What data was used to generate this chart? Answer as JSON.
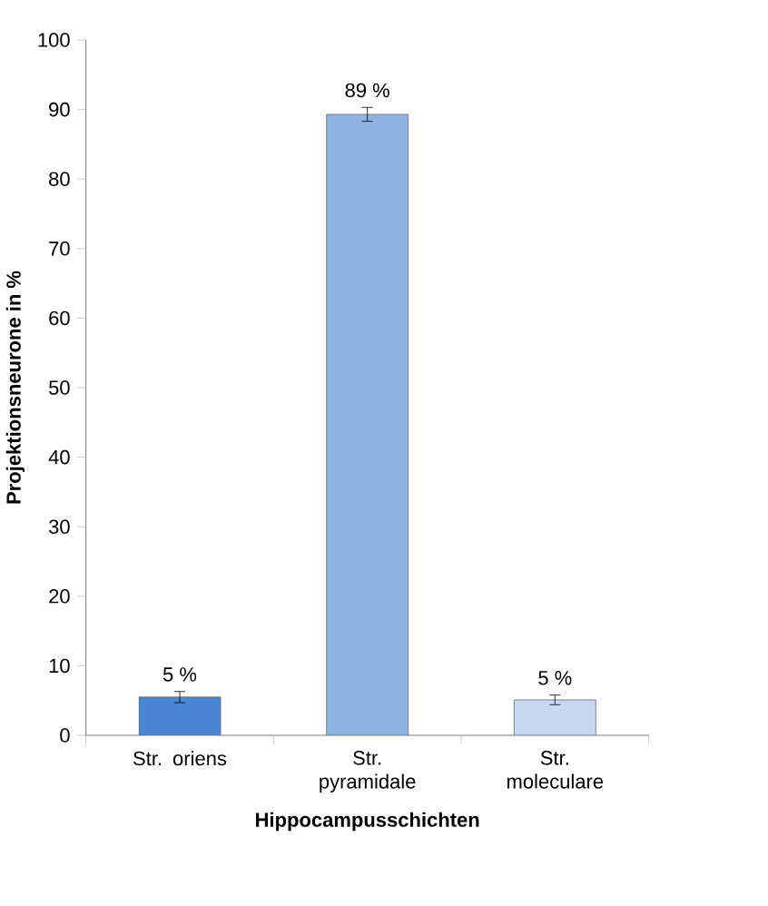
{
  "chart_data": {
    "type": "bar",
    "xlabel": "Hippocampusschichten",
    "ylabel": "Projektionsneurone in %",
    "categories": [
      "Str. oriens",
      "Str. pyramidale",
      "Str. moleculare"
    ],
    "values": [
      5.5,
      89.3,
      5.1
    ],
    "errors": [
      0.8,
      1.0,
      0.7
    ],
    "colors": [
      "#4a86d4",
      "#8db3e2",
      "#c6d9f1"
    ],
    "value_labels": [
      "5 %",
      "89 %",
      "5 %"
    ],
    "ylim": [
      0,
      100
    ],
    "yticks": [
      0,
      10,
      20,
      30,
      40,
      50,
      60,
      70,
      80,
      90,
      100
    ]
  }
}
